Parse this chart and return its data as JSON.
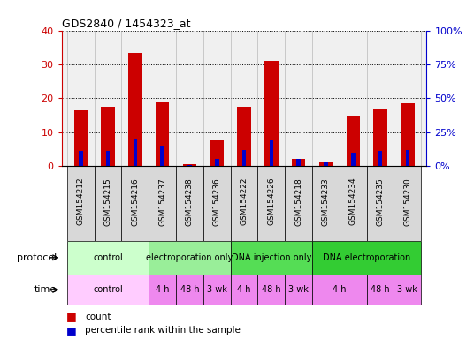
{
  "title": "GDS2840 / 1454323_at",
  "samples": [
    "GSM154212",
    "GSM154215",
    "GSM154216",
    "GSM154237",
    "GSM154238",
    "GSM154236",
    "GSM154222",
    "GSM154226",
    "GSM154218",
    "GSM154233",
    "GSM154234",
    "GSM154235",
    "GSM154230"
  ],
  "counts": [
    16.5,
    17.5,
    33.5,
    19.0,
    0.5,
    7.5,
    17.5,
    31.0,
    2.0,
    1.2,
    15.0,
    17.0,
    18.5
  ],
  "percentile_ranks": [
    11.0,
    11.0,
    20.0,
    15.0,
    1.0,
    5.0,
    12.0,
    19.0,
    5.0,
    2.5,
    10.0,
    11.0,
    12.0
  ],
  "count_color": "#cc0000",
  "percentile_color": "#0000cc",
  "ylim_left": [
    0,
    40
  ],
  "ylim_right": [
    0,
    100
  ],
  "yticks_left": [
    0,
    10,
    20,
    30,
    40
  ],
  "yticks_right": [
    0,
    25,
    50,
    75,
    100
  ],
  "ytick_labels_left": [
    "0",
    "10",
    "20",
    "30",
    "40"
  ],
  "ytick_labels_right": [
    "0%",
    "25%",
    "50%",
    "75%",
    "100%"
  ],
  "protocol_groups": [
    {
      "label": "control",
      "start": 0,
      "end": 3,
      "color": "#ccffcc"
    },
    {
      "label": "electroporation only",
      "start": 3,
      "end": 6,
      "color": "#99ee99"
    },
    {
      "label": "DNA injection only",
      "start": 6,
      "end": 9,
      "color": "#55dd55"
    },
    {
      "label": "DNA electroporation",
      "start": 9,
      "end": 13,
      "color": "#33cc33"
    }
  ],
  "time_groups": [
    {
      "label": "control",
      "start": 0,
      "end": 3,
      "color": "#ffccff"
    },
    {
      "label": "4 h",
      "start": 3,
      "end": 4,
      "color": "#ee88ee"
    },
    {
      "label": "48 h",
      "start": 4,
      "end": 5,
      "color": "#ee88ee"
    },
    {
      "label": "3 wk",
      "start": 5,
      "end": 6,
      "color": "#ee88ee"
    },
    {
      "label": "4 h",
      "start": 6,
      "end": 7,
      "color": "#ee88ee"
    },
    {
      "label": "48 h",
      "start": 7,
      "end": 8,
      "color": "#ee88ee"
    },
    {
      "label": "3 wk",
      "start": 8,
      "end": 9,
      "color": "#ee88ee"
    },
    {
      "label": "4 h",
      "start": 9,
      "end": 11,
      "color": "#ee88ee"
    },
    {
      "label": "48 h",
      "start": 11,
      "end": 12,
      "color": "#ee88ee"
    },
    {
      "label": "3 wk",
      "start": 12,
      "end": 13,
      "color": "#ee88ee"
    }
  ],
  "bar_width": 0.5,
  "blue_bar_width": 0.15,
  "background_color": "#ffffff",
  "label_protocol": "protocol",
  "label_time": "time",
  "plot_bg": "#f0f0f0",
  "sample_cell_bg": "#d8d8d8"
}
